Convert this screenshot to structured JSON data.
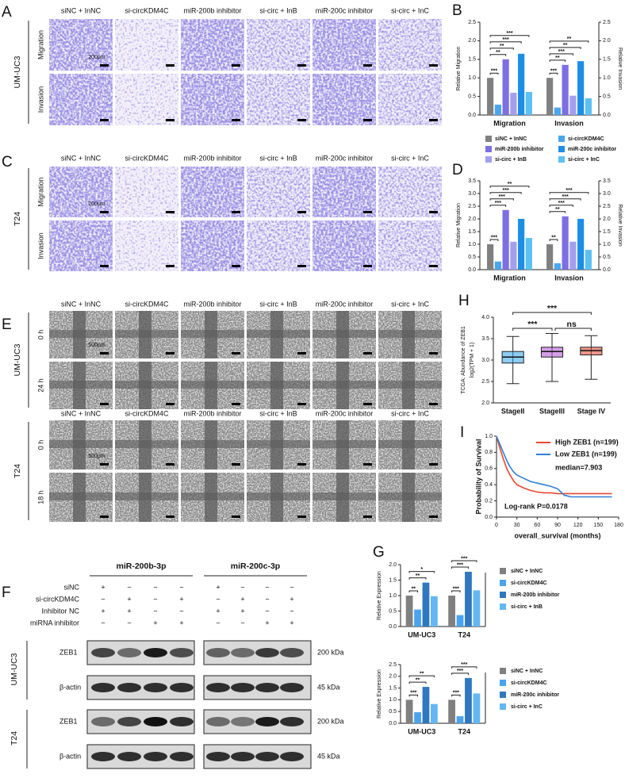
{
  "panel_a": {
    "label": "A",
    "cell_line": "UM-UC3",
    "columns": [
      "siNC + InNC",
      "si-circKDM4C",
      "miR-200b inhibitor",
      "si-circ + InB",
      "miR-200c inhibitor",
      "si-circ + InC"
    ],
    "rows": [
      "Migration",
      "Invasion"
    ],
    "scale_bar": "200μm"
  },
  "panel_c": {
    "label": "C",
    "cell_line": "T24",
    "columns": [
      "siNC + InNC",
      "si-circKDM4C",
      "miR-200b inhibitor",
      "si-circ + InB",
      "miR-200c inhibitor",
      "si-circ + InC"
    ],
    "rows": [
      "Migration",
      "Invasion"
    ],
    "scale_bar": "200μm"
  },
  "panel_e": {
    "label": "E",
    "blocks": [
      {
        "cell_line": "UM-UC3",
        "columns": [
          "siNC + InNC",
          "si-circKDM4C",
          "miR-200b inhibitor",
          "si-circ + InB",
          "miR-200c inhibitor",
          "si-circ + InC"
        ],
        "rows": [
          "0 h",
          "24 h"
        ],
        "scale_bar": "500μm"
      },
      {
        "cell_line": "T24",
        "columns": [
          "siNC + InNC",
          "si-circKDM4C",
          "miR-200b inhibitor",
          "si-circ + InB",
          "miR-200c inhibitor",
          "si-circ + InC"
        ],
        "rows": [
          "0 h",
          "18 h"
        ],
        "scale_bar": "500μm"
      }
    ]
  },
  "panel_f": {
    "label": "F",
    "groups": [
      "miR-200b-3p",
      "miR-200c-3p"
    ],
    "conditions": [
      {
        "name": "siNC",
        "signs": [
          "+",
          "−",
          "−",
          "−",
          "+",
          "−",
          "−",
          "−"
        ]
      },
      {
        "name": "si-circKDM4C",
        "signs": [
          "−",
          "+",
          "−",
          "+",
          "−",
          "+",
          "−",
          "+"
        ]
      },
      {
        "name": "Inhibitor NC",
        "signs": [
          "+",
          "+",
          "−",
          "−",
          "+",
          "+",
          "−",
          "−"
        ]
      },
      {
        "name": "miRNA inhibitor",
        "signs": [
          "−",
          "−",
          "+",
          "+",
          "−",
          "−",
          "+",
          "+"
        ]
      }
    ],
    "blots": [
      {
        "cell_line": "UM-UC3",
        "bands": [
          {
            "protein": "ZEB1",
            "size": "200 kDa"
          },
          {
            "protein": "β-actin",
            "size": "45 kDa"
          }
        ]
      },
      {
        "cell_line": "T24",
        "bands": [
          {
            "protein": "ZEB1",
            "size": "200 kDa"
          },
          {
            "protein": "β-actin",
            "size": "45 kDa"
          }
        ]
      }
    ]
  },
  "chart_data": [
    {
      "type": "bar",
      "panel": "B",
      "categories": [
        "Migration",
        "Invasion"
      ],
      "series": [
        {
          "name": "siNC + InNC",
          "color": "#808080",
          "values": [
            1.0,
            1.0
          ]
        },
        {
          "name": "si-circKDM4C",
          "color": "#4ba6ee",
          "values": [
            0.28,
            0.2
          ]
        },
        {
          "name": "miR-200b inhibitor",
          "color": "#7d6fe3",
          "values": [
            1.5,
            1.35
          ]
        },
        {
          "name": "si-circ + InB",
          "color": "#a49fec",
          "values": [
            0.6,
            0.52
          ]
        },
        {
          "name": "miR-200c inhibitor",
          "color": "#1c8ee6",
          "values": [
            1.65,
            1.45
          ]
        },
        {
          "name": "si-circ + InC",
          "color": "#5cc0f2",
          "values": [
            0.62,
            0.45
          ]
        }
      ],
      "ylabel": "Relative Migration",
      "y2label": "Relative Invasion",
      "ylim": [
        0,
        2.5
      ],
      "yticks": [
        {
          "value": 0,
          "label": "0.0"
        },
        0.5,
        {
          "value": 1,
          "label": "1.0"
        },
        1.5,
        {
          "value": 2,
          "label": "2.0"
        },
        2.5
      ],
      "y2lim": [
        0,
        2.5
      ],
      "y2ticks": [
        {
          "value": 0,
          "label": "0.0"
        },
        0.5,
        {
          "value": 1,
          "label": "1.0"
        },
        1.5,
        {
          "value": 2,
          "label": "2.0"
        },
        2.5
      ],
      "significance": [
        [
          "***",
          "**",
          "**",
          "***",
          "***"
        ],
        [
          "***",
          "**",
          "***",
          "**",
          "**"
        ]
      ],
      "legend": "bottom"
    },
    {
      "type": "bar",
      "panel": "D",
      "categories": [
        "Migration",
        "Invasion"
      ],
      "series": [
        {
          "color": "#808080",
          "values": [
            1.0,
            1.0
          ]
        },
        {
          "color": "#4ba6ee",
          "values": [
            0.32,
            0.25
          ]
        },
        {
          "color": "#7d6fe3",
          "values": [
            2.35,
            2.1
          ]
        },
        {
          "color": "#a49fec",
          "values": [
            1.1,
            1.1
          ]
        },
        {
          "color": "#1c8ee6",
          "values": [
            2.0,
            2.0
          ]
        },
        {
          "color": "#5cc0f2",
          "values": [
            1.25,
            0.78
          ]
        }
      ],
      "ylabel": "Relative Migration",
      "y2label": "Relative Invasion",
      "ylim": [
        0,
        3.5
      ],
      "yticks": [
        {
          "value": 0,
          "label": "0.0"
        },
        0.5,
        {
          "value": 1,
          "label": "1.0"
        },
        1.5,
        {
          "value": 2,
          "label": "2.0"
        },
        2.5,
        {
          "value": 3,
          "label": "3.0"
        },
        3.5
      ],
      "y2lim": [
        0,
        3.5
      ],
      "y2ticks": [
        {
          "value": 0,
          "label": "0.0"
        },
        0.5,
        {
          "value": 1,
          "label": "1.0"
        },
        1.5,
        {
          "value": 2,
          "label": "2.0"
        },
        2.5,
        {
          "value": 3,
          "label": "3.0"
        },
        3.5
      ],
      "significance": [
        [
          "***",
          "***",
          "***",
          "***",
          "**"
        ],
        [
          "**",
          "**",
          "***",
          "***",
          "***"
        ]
      ]
    },
    {
      "type": "bar",
      "panel": "G",
      "categories": [
        "UM-UC3",
        "T24"
      ],
      "series": [
        {
          "name": "siNC + InNC",
          "color": "#808080",
          "values": [
            1.0,
            1.0
          ]
        },
        {
          "name": "si-circKDM4C",
          "color": "#4aa3ef",
          "values": [
            0.55,
            0.37
          ]
        },
        {
          "name": "miR-200b inhibitor",
          "color": "#2f78bf",
          "values": [
            1.42,
            1.77
          ]
        },
        {
          "name": "si-circ + InB",
          "color": "#63b7f3",
          "values": [
            0.98,
            1.17
          ]
        }
      ],
      "ylabel": "Relative Expression",
      "ylim": [
        0,
        2
      ],
      "yticks": [
        {
          "value": 0,
          "label": "0.0"
        },
        0.5,
        {
          "value": 1,
          "label": "1.0"
        },
        1.5,
        {
          "value": 2,
          "label": "2.0"
        }
      ],
      "significance": [
        [
          "**",
          "**",
          "*"
        ],
        [
          "***",
          "***",
          "***"
        ]
      ],
      "legend": "right"
    },
    {
      "type": "bar",
      "categories": [
        "UM-UC3",
        "T24"
      ],
      "series": [
        {
          "name": "siNC + InNC",
          "color": "#808080",
          "values": [
            1.0,
            1.0
          ]
        },
        {
          "name": "si-circKDM4C",
          "color": "#4aa3ef",
          "values": [
            0.47,
            0.3
          ]
        },
        {
          "name": "miR-200c inhibitor",
          "color": "#2f78bf",
          "values": [
            1.55,
            1.93
          ]
        },
        {
          "name": "si-circ + InC",
          "color": "#63b7f3",
          "values": [
            0.82,
            1.27
          ]
        }
      ],
      "ylabel": "Relative Expression",
      "ylim": [
        0,
        2.5
      ],
      "yticks": [
        {
          "value": 0,
          "label": "0.0"
        },
        0.5,
        {
          "value": 1,
          "label": "1.0"
        },
        1.5,
        {
          "value": 2,
          "label": "2.0"
        },
        2.5
      ],
      "significance": [
        [
          "***",
          "**",
          "**"
        ],
        [
          "***",
          "***",
          "***"
        ]
      ],
      "legend": "right"
    },
    {
      "type": "box",
      "panel": "H",
      "categories": [
        "StageII",
        "StageIII",
        "Stage IV"
      ],
      "colors": [
        "#2fa4e7",
        "#b04fd0",
        "#e0402a"
      ],
      "boxes": [
        {
          "min": 2.45,
          "q1": 2.93,
          "median": 3.07,
          "q3": 3.2,
          "max": 3.55
        },
        {
          "min": 2.5,
          "q1": 3.07,
          "median": 3.2,
          "q3": 3.3,
          "max": 3.62
        },
        {
          "min": 2.55,
          "q1": 3.12,
          "median": 3.22,
          "q3": 3.3,
          "max": 3.57
        }
      ],
      "ylabel": [
        "TCGA: Abundance of ZEB1",
        "log2(TPM + 1)"
      ],
      "ylim": [
        2,
        4
      ],
      "yticks": [
        {
          "value": 2,
          "label": "2.0"
        },
        2.5,
        {
          "value": 3,
          "label": "3.0"
        },
        3.5,
        {
          "value": 4,
          "label": "4.0"
        }
      ],
      "significance": [
        "***",
        "ns",
        "***"
      ]
    },
    {
      "type": "line",
      "panel": "I",
      "series": [
        {
          "name": "High ZEB1 (n=199)",
          "color": "#e8472e",
          "x": [
            0,
            5,
            10,
            15,
            20,
            25,
            30,
            40,
            50,
            60,
            70,
            80,
            90,
            100,
            110,
            120,
            140,
            160,
            170
          ],
          "values": [
            1,
            0.85,
            0.72,
            0.6,
            0.52,
            0.45,
            0.4,
            0.36,
            0.33,
            0.31,
            0.3,
            0.3,
            0.29,
            0.29,
            0.29,
            0.29,
            0.29,
            0.29,
            0.29
          ]
        },
        {
          "name": "Low ZEB1 (n=199)",
          "color": "#2f80d6",
          "x": [
            0,
            5,
            10,
            15,
            20,
            25,
            30,
            40,
            50,
            60,
            70,
            80,
            90,
            100,
            110,
            120,
            170
          ],
          "values": [
            1,
            0.9,
            0.8,
            0.7,
            0.62,
            0.56,
            0.52,
            0.48,
            0.44,
            0.42,
            0.4,
            0.38,
            0.35,
            0.27,
            0.25,
            0.25,
            0.25
          ]
        }
      ],
      "xlabel": "overall_survival (months)",
      "ylabel": "Probability of Survival",
      "xlim": [
        0,
        180
      ],
      "xticks": [
        0,
        30,
        60,
        90,
        120,
        150,
        180
      ],
      "ylim": [
        0,
        1
      ],
      "yticks": [
        {
          "value": 0,
          "label": "0.0"
        },
        0.2,
        0.4,
        0.6,
        0.8,
        {
          "value": 1,
          "label": "1.0"
        }
      ],
      "annotations": [
        "median=7.903",
        "Log-rank P=0.0178"
      ],
      "legend": "upper right"
    }
  ]
}
